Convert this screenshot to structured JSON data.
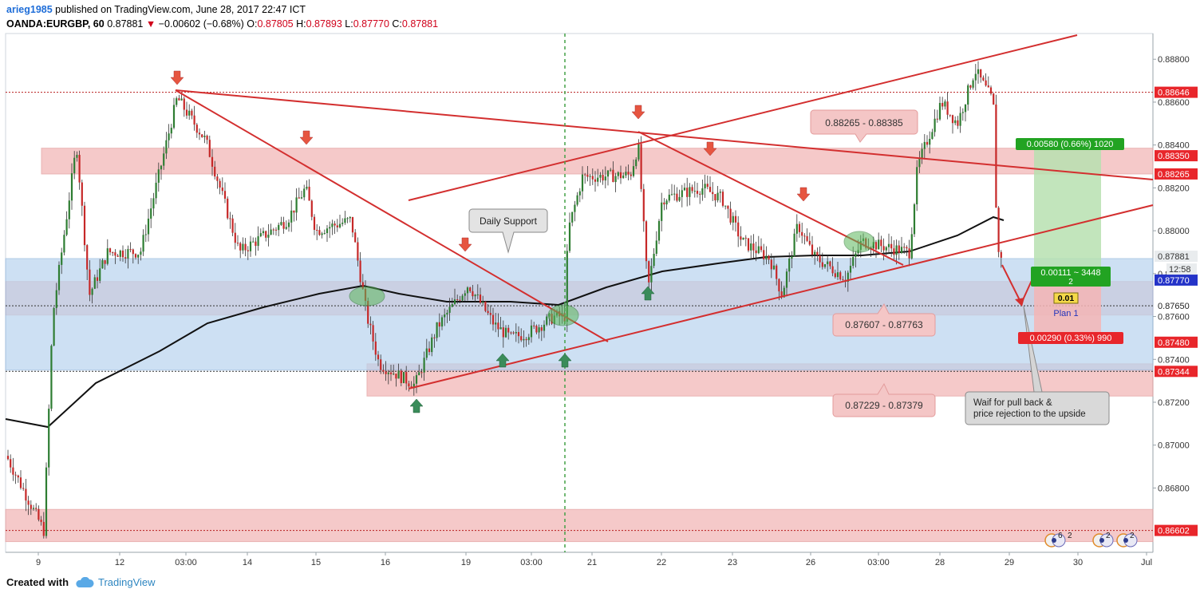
{
  "header": {
    "author": "arieg1985",
    "published": "published on TradingView.com, June 28, 2017 22:47 ICT",
    "symbol": "OANDA:EURGBP, 60",
    "last": "0.87881",
    "change": "−0.00602 (−0.68%)",
    "o_label": "O:",
    "o_val": "0.87805",
    "h_label": "H:",
    "h_val": "0.87893",
    "l_label": "L:",
    "l_val": "0.87770",
    "c_label": "C:",
    "c_val": "0.87881"
  },
  "footer": {
    "created_with": "Created with",
    "brand": "TradingView"
  },
  "colors": {
    "bull": "#2e7d32",
    "bear": "#c62828",
    "trend": "#d32f2f",
    "zone_red": "#f2b8b8",
    "zone_blue": "#b9d4ee",
    "ma": "#111111"
  },
  "chart_data": {
    "type": "candlestick",
    "ylim": [
      0.865,
      0.8892
    ],
    "y_ticks": [
      "0.88800",
      "0.88600",
      "0.88400",
      "0.88200",
      "0.88000",
      "0.87800",
      "0.87600",
      "0.87400",
      "0.87200",
      "0.87000",
      "0.86800"
    ],
    "x_ticks": [
      "9",
      "03:00",
      "12",
      "14",
      "15",
      "16",
      "19",
      "03:00",
      "21",
      "22",
      "23",
      "26",
      "03:00",
      "28",
      "29",
      "30",
      "Jul"
    ],
    "price_labels": [
      {
        "text": "0.88646",
        "value": 0.88646,
        "kind": "red"
      },
      {
        "text": "0.88350",
        "value": 0.8835,
        "kind": "red"
      },
      {
        "text": "0.88265",
        "value": 0.88265,
        "kind": "red"
      },
      {
        "text": "0.87881",
        "value": 0.87881,
        "kind": "gray"
      },
      {
        "text": "0.87770",
        "value": 0.8777,
        "kind": "blue"
      },
      {
        "text": "0.87650",
        "value": 0.8765,
        "kind": "plain"
      },
      {
        "text": "0.87480",
        "value": 0.8748,
        "kind": "red"
      },
      {
        "text": "0.87344",
        "value": 0.87344,
        "kind": "red"
      },
      {
        "text": "0.86602",
        "value": 0.86602,
        "kind": "red"
      }
    ],
    "countdown": "12:58",
    "zones": [
      {
        "low": 0.88265,
        "high": 0.88385,
        "color": "red",
        "label": "0.88265 - 0.88385"
      },
      {
        "low": 0.87607,
        "high": 0.87763,
        "color": "red",
        "label": "0.87607 - 0.87763"
      },
      {
        "low": 0.87229,
        "high": 0.87379,
        "color": "red",
        "label": "0.87229 - 0.87379"
      },
      {
        "low": 0.8655,
        "high": 0.867,
        "color": "red",
        "label": ""
      },
      {
        "low": 0.8735,
        "high": 0.8787,
        "color": "blue",
        "label": ""
      }
    ],
    "callouts": {
      "daily_support": "Daily Support",
      "note_line1": "Waif for pull back &",
      "note_line2": "price rejection to the upside"
    },
    "position": {
      "target": "0.00580 (0.66%) 1020",
      "stop": "0.00290 (0.33%) 990",
      "entry": "0.00111 ~ 3448",
      "entry_sub": "2",
      "qty": "0.01",
      "name": "Plan 1"
    },
    "badges": [
      {
        "count": "6",
        "sub": "2"
      },
      {
        "count": "2",
        "sub": ""
      },
      {
        "count": "2",
        "sub": ""
      }
    ]
  }
}
